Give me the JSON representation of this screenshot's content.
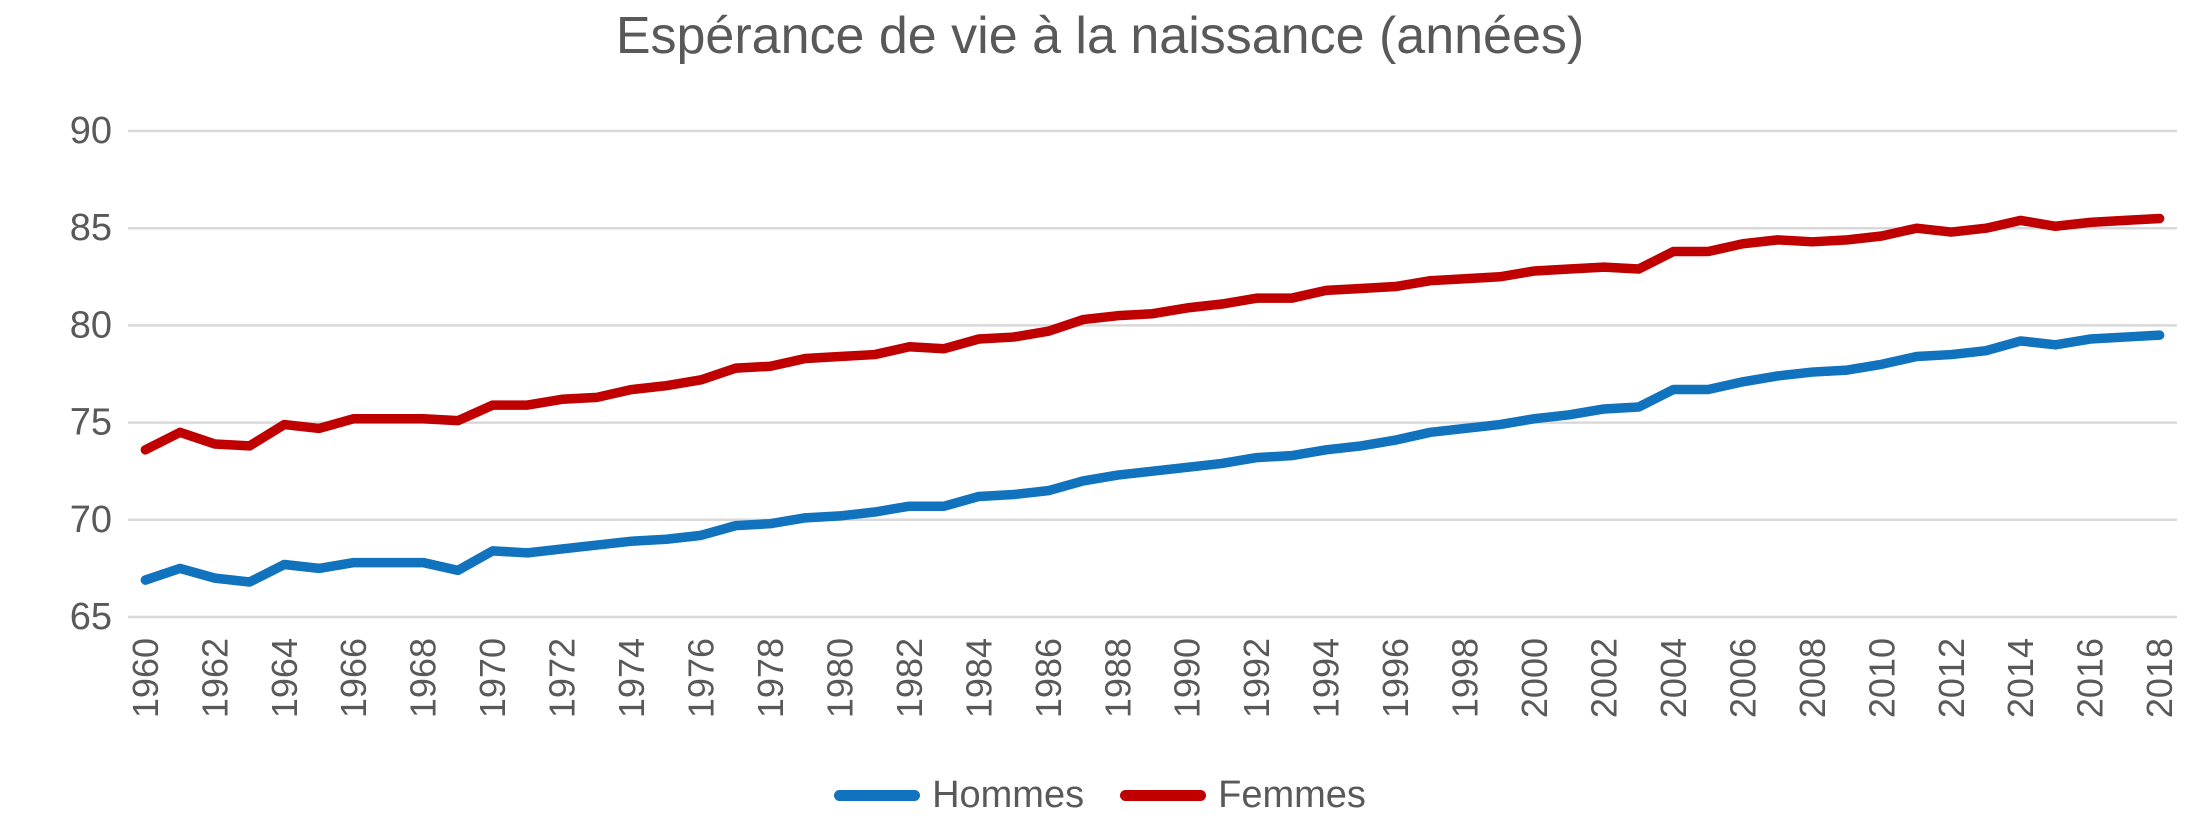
{
  "title": "Espérance de vie à la naissance (années)",
  "colors": {
    "hommes_blue": "#1172BD",
    "femmes_red": "#C00000",
    "gridline_gray": "#D9D9D9",
    "text_gray": "#595959",
    "background": "#FFFFFF"
  },
  "legend": {
    "position": "bottom",
    "items": [
      {
        "label": "Hommes",
        "color": "#1172BD"
      },
      {
        "label": "Femmes",
        "color": "#C00000"
      }
    ]
  },
  "chart_data": {
    "type": "line",
    "title": "Espérance de vie à la naissance (années)",
    "xlabel": "",
    "ylabel": "",
    "ylim": [
      65,
      90
    ],
    "yticks": [
      65,
      70,
      75,
      80,
      85,
      90
    ],
    "grid": "horizontal",
    "legend_position": "bottom",
    "xtick_step": 2,
    "x": [
      1960,
      1961,
      1962,
      1963,
      1964,
      1965,
      1966,
      1967,
      1968,
      1969,
      1970,
      1971,
      1972,
      1973,
      1974,
      1975,
      1976,
      1977,
      1978,
      1979,
      1980,
      1981,
      1982,
      1983,
      1984,
      1985,
      1986,
      1987,
      1988,
      1989,
      1990,
      1991,
      1992,
      1993,
      1994,
      1995,
      1996,
      1997,
      1998,
      1999,
      2000,
      2001,
      2002,
      2003,
      2004,
      2005,
      2006,
      2007,
      2008,
      2009,
      2010,
      2011,
      2012,
      2013,
      2014,
      2015,
      2016,
      2017,
      2018
    ],
    "series": [
      {
        "name": "Hommes",
        "color": "#1172BD",
        "values": [
          66.9,
          67.5,
          67.0,
          66.8,
          67.7,
          67.5,
          67.8,
          67.8,
          67.8,
          67.4,
          68.4,
          68.3,
          68.5,
          68.7,
          68.9,
          69.0,
          69.2,
          69.7,
          69.8,
          70.1,
          70.2,
          70.4,
          70.7,
          70.7,
          71.2,
          71.3,
          71.5,
          72.0,
          72.3,
          72.5,
          72.7,
          72.9,
          73.2,
          73.3,
          73.6,
          73.8,
          74.1,
          74.5,
          74.7,
          74.9,
          75.2,
          75.4,
          75.7,
          75.8,
          76.7,
          76.7,
          77.1,
          77.4,
          77.6,
          77.7,
          78.0,
          78.4,
          78.5,
          78.7,
          79.2,
          79.0,
          79.3,
          79.4,
          79.5
        ]
      },
      {
        "name": "Femmes",
        "color": "#C00000",
        "values": [
          73.6,
          74.5,
          73.9,
          73.8,
          74.9,
          74.7,
          75.2,
          75.2,
          75.2,
          75.1,
          75.9,
          75.9,
          76.2,
          76.3,
          76.7,
          76.9,
          77.2,
          77.8,
          77.9,
          78.3,
          78.4,
          78.5,
          78.9,
          78.8,
          79.3,
          79.4,
          79.7,
          80.3,
          80.5,
          80.6,
          80.9,
          81.1,
          81.4,
          81.4,
          81.8,
          81.9,
          82.0,
          82.3,
          82.4,
          82.5,
          82.8,
          82.9,
          83.0,
          82.9,
          83.8,
          83.8,
          84.2,
          84.4,
          84.3,
          84.4,
          84.6,
          85.0,
          84.8,
          85.0,
          85.4,
          85.1,
          85.3,
          85.4,
          85.5
        ]
      }
    ]
  }
}
